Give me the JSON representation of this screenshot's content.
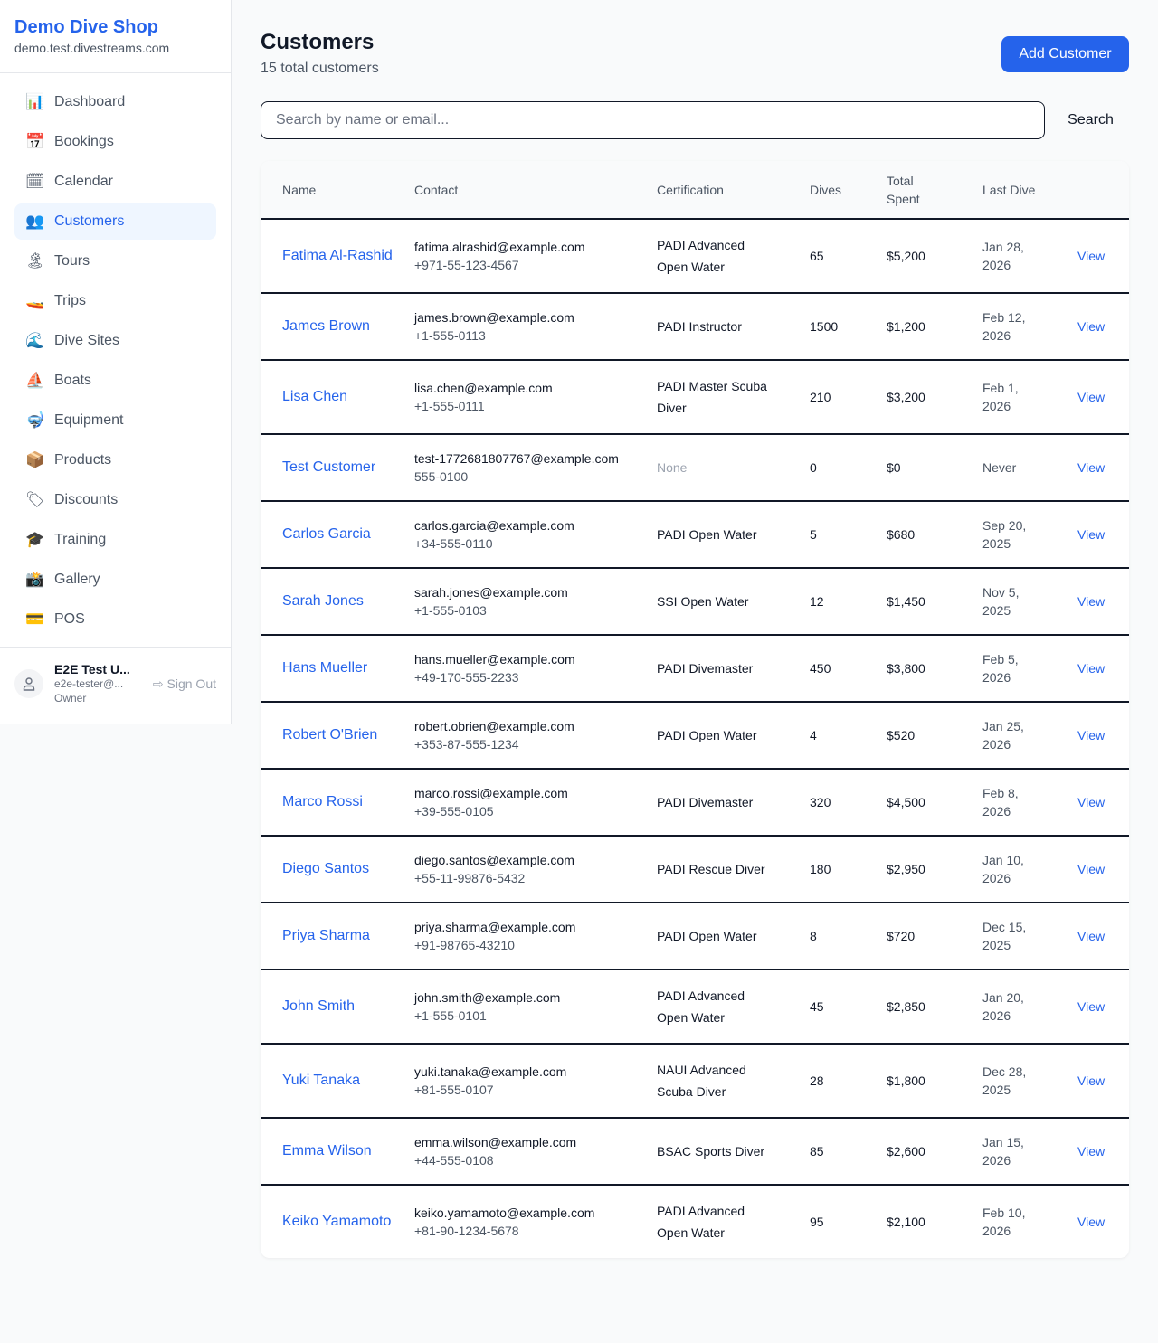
{
  "sidebar": {
    "brand": "Demo Dive Shop",
    "domain": "demo.test.divestreams.com",
    "items": [
      {
        "label": "Dashboard",
        "icon": "📊",
        "name": "chart-icon"
      },
      {
        "label": "Bookings",
        "icon": "📅",
        "name": "calendar-date-icon"
      },
      {
        "label": "Calendar",
        "icon": "🗓",
        "name": "calendar-icon"
      },
      {
        "label": "Customers",
        "icon": "👥",
        "name": "people-icon",
        "active": true
      },
      {
        "label": "Tours",
        "icon": "🏝",
        "name": "island-icon"
      },
      {
        "label": "Trips",
        "icon": "🚤",
        "name": "boat-icon"
      },
      {
        "label": "Dive Sites",
        "icon": "🌊",
        "name": "wave-icon"
      },
      {
        "label": "Boats",
        "icon": "⛵",
        "name": "sailboat-icon"
      },
      {
        "label": "Equipment",
        "icon": "🤿",
        "name": "diving-mask-icon"
      },
      {
        "label": "Products",
        "icon": "📦",
        "name": "package-icon"
      },
      {
        "label": "Discounts",
        "icon": "🏷",
        "name": "tag-icon"
      },
      {
        "label": "Training",
        "icon": "🎓",
        "name": "graduation-cap-icon"
      },
      {
        "label": "Gallery",
        "icon": "📸",
        "name": "camera-icon"
      },
      {
        "label": "POS",
        "icon": "💳",
        "name": "credit-card-icon"
      }
    ],
    "user": {
      "name": "E2E Test U...",
      "email": "e2e-tester@...",
      "role": "Owner",
      "sign_out": "Sign Out"
    }
  },
  "header": {
    "title": "Customers",
    "subtitle": "15 total customers",
    "add_label": "Add Customer"
  },
  "search": {
    "placeholder": "Search by name or email...",
    "value": "",
    "button": "Search"
  },
  "table": {
    "columns": [
      "Name",
      "Contact",
      "Certification",
      "Dives",
      "Total Spent",
      "Last Dive",
      ""
    ],
    "rows": [
      {
        "name": "Fatima Al-Rashid",
        "email": "fatima.alrashid@example.com",
        "phone": "+971-55-123-4567",
        "cert": "PADI Advanced Open Water",
        "dives": "65",
        "spent": "$5,200",
        "last": "Jan 28, 2026",
        "action": "View"
      },
      {
        "name": "James Brown",
        "email": "james.brown@example.com",
        "phone": "+1-555-0113",
        "cert": "PADI Instructor",
        "dives": "1500",
        "spent": "$1,200",
        "last": "Feb 12, 2026",
        "action": "View"
      },
      {
        "name": "Lisa Chen",
        "email": "lisa.chen@example.com",
        "phone": "+1-555-0111",
        "cert": "PADI Master Scuba Diver",
        "dives": "210",
        "spent": "$3,200",
        "last": "Feb 1, 2026",
        "action": "View"
      },
      {
        "name": "Test Customer",
        "email": "test-1772681807767@example.com",
        "phone": "555-0100",
        "cert": "None",
        "dives": "0",
        "spent": "$0",
        "last": "Never",
        "action": "View"
      },
      {
        "name": "Carlos Garcia",
        "email": "carlos.garcia@example.com",
        "phone": "+34-555-0110",
        "cert": "PADI Open Water",
        "dives": "5",
        "spent": "$680",
        "last": "Sep 20, 2025",
        "action": "View"
      },
      {
        "name": "Sarah Jones",
        "email": "sarah.jones@example.com",
        "phone": "+1-555-0103",
        "cert": "SSI Open Water",
        "dives": "12",
        "spent": "$1,450",
        "last": "Nov 5, 2025",
        "action": "View"
      },
      {
        "name": "Hans Mueller",
        "email": "hans.mueller@example.com",
        "phone": "+49-170-555-2233",
        "cert": "PADI Divemaster",
        "dives": "450",
        "spent": "$3,800",
        "last": "Feb 5, 2026",
        "action": "View"
      },
      {
        "name": "Robert O'Brien",
        "email": "robert.obrien@example.com",
        "phone": "+353-87-555-1234",
        "cert": "PADI Open Water",
        "dives": "4",
        "spent": "$520",
        "last": "Jan 25, 2026",
        "action": "View"
      },
      {
        "name": "Marco Rossi",
        "email": "marco.rossi@example.com",
        "phone": "+39-555-0105",
        "cert": "PADI Divemaster",
        "dives": "320",
        "spent": "$4,500",
        "last": "Feb 8, 2026",
        "action": "View"
      },
      {
        "name": "Diego Santos",
        "email": "diego.santos@example.com",
        "phone": "+55-11-99876-5432",
        "cert": "PADI Rescue Diver",
        "dives": "180",
        "spent": "$2,950",
        "last": "Jan 10, 2026",
        "action": "View"
      },
      {
        "name": "Priya Sharma",
        "email": "priya.sharma@example.com",
        "phone": "+91-98765-43210",
        "cert": "PADI Open Water",
        "dives": "8",
        "spent": "$720",
        "last": "Dec 15, 2025",
        "action": "View"
      },
      {
        "name": "John Smith",
        "email": "john.smith@example.com",
        "phone": "+1-555-0101",
        "cert": "PADI Advanced Open Water",
        "dives": "45",
        "spent": "$2,850",
        "last": "Jan 20, 2026",
        "action": "View"
      },
      {
        "name": "Yuki Tanaka",
        "email": "yuki.tanaka@example.com",
        "phone": "+81-555-0107",
        "cert": "NAUI Advanced Scuba Diver",
        "dives": "28",
        "spent": "$1,800",
        "last": "Dec 28, 2025",
        "action": "View"
      },
      {
        "name": "Emma Wilson",
        "email": "emma.wilson@example.com",
        "phone": "+44-555-0108",
        "cert": "BSAC Sports Diver",
        "dives": "85",
        "spent": "$2,600",
        "last": "Jan 15, 2026",
        "action": "View"
      },
      {
        "name": "Keiko Yamamoto",
        "email": "keiko.yamamoto@example.com",
        "phone": "+81-90-1234-5678",
        "cert": "PADI Advanced Open Water",
        "dives": "95",
        "spent": "$2,100",
        "last": "Feb 10, 2026",
        "action": "View"
      }
    ]
  }
}
